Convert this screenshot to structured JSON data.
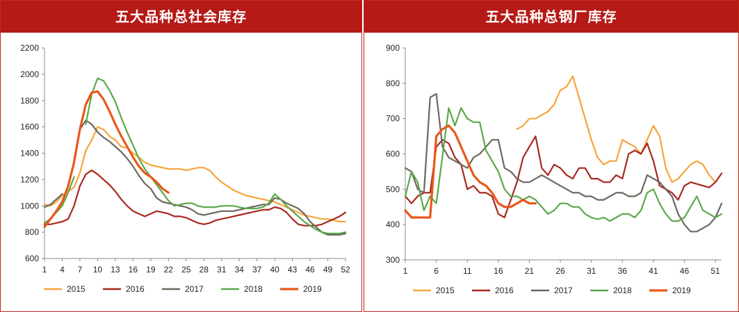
{
  "colors": {
    "title_bg": "#b51a16",
    "title_text": "#ffffff",
    "s2015": "#f7a43a",
    "s2016": "#a8271e",
    "s2017": "#6e665e",
    "s2018": "#5aa84a",
    "s2019": "#e8581a"
  },
  "chart_data": [
    {
      "type": "line",
      "title": "五大品种总社会库存",
      "ylim": [
        600,
        2200
      ],
      "yticks": [
        600,
        800,
        1000,
        1200,
        1400,
        1600,
        1800,
        2000,
        2200
      ],
      "xlim": [
        1,
        52
      ],
      "xticks": [
        1,
        4,
        7,
        10,
        13,
        16,
        19,
        22,
        25,
        28,
        31,
        34,
        37,
        40,
        43,
        46,
        49,
        52
      ],
      "legend_position": "bottom",
      "series": [
        {
          "name": "2015",
          "color": "#f7a43a",
          "x": [
            1,
            2,
            3,
            4,
            5,
            6,
            7,
            8,
            9,
            10,
            11,
            12,
            13,
            14,
            15,
            16,
            17,
            18,
            19,
            20,
            21,
            22,
            23,
            24,
            25,
            26,
            27,
            28,
            29,
            30,
            31,
            32,
            33,
            34,
            35,
            36,
            37,
            38,
            39,
            40,
            41,
            42,
            43,
            44,
            45,
            46,
            47,
            48,
            49,
            50,
            51,
            52
          ],
          "values": [
            1010,
            1000,
            1030,
            1080,
            1110,
            1140,
            1250,
            1420,
            1500,
            1600,
            1580,
            1530,
            1500,
            1450,
            1440,
            1400,
            1370,
            1330,
            1310,
            1300,
            1290,
            1280,
            1280,
            1280,
            1270,
            1280,
            1290,
            1290,
            1270,
            1220,
            1180,
            1150,
            1120,
            1100,
            1080,
            1070,
            1060,
            1050,
            1040,
            1030,
            1010,
            990,
            970,
            950,
            930,
            920,
            910,
            900,
            900,
            890,
            880,
            880
          ]
        },
        {
          "name": "2016",
          "color": "#a8271e",
          "x": [
            1,
            2,
            3,
            4,
            5,
            6,
            7,
            8,
            9,
            10,
            11,
            12,
            13,
            14,
            15,
            16,
            17,
            18,
            19,
            20,
            21,
            22,
            23,
            24,
            25,
            26,
            27,
            28,
            29,
            30,
            31,
            32,
            33,
            34,
            35,
            36,
            37,
            38,
            39,
            40,
            41,
            42,
            43,
            44,
            45,
            46,
            47,
            48,
            49,
            50,
            51,
            52
          ],
          "values": [
            860,
            860,
            870,
            880,
            900,
            1000,
            1150,
            1240,
            1270,
            1240,
            1200,
            1160,
            1110,
            1050,
            1000,
            960,
            940,
            920,
            940,
            960,
            950,
            940,
            920,
            920,
            910,
            890,
            870,
            860,
            870,
            890,
            900,
            910,
            920,
            930,
            940,
            950,
            960,
            970,
            970,
            990,
            980,
            950,
            900,
            860,
            850,
            850,
            850,
            860,
            880,
            900,
            920,
            950
          ]
        },
        {
          "name": "2017",
          "color": "#6e665e",
          "x": [
            1,
            2,
            3,
            4,
            5,
            6,
            7,
            8,
            9,
            10,
            11,
            12,
            13,
            14,
            15,
            16,
            17,
            18,
            19,
            20,
            21,
            22,
            23,
            24,
            25,
            26,
            27,
            28,
            29,
            30,
            31,
            32,
            33,
            34,
            35,
            36,
            37,
            38,
            39,
            40,
            41,
            42,
            43,
            44,
            45,
            46,
            47,
            48,
            49,
            50,
            51,
            52
          ],
          "values": [
            990,
            1010,
            1050,
            1090,
            null,
            1350,
            1580,
            1650,
            1620,
            1560,
            1520,
            1490,
            1450,
            1410,
            1360,
            1300,
            1230,
            1170,
            1130,
            1060,
            1030,
            1020,
            1010,
            1000,
            990,
            970,
            940,
            930,
            940,
            950,
            960,
            960,
            960,
            970,
            980,
            990,
            1000,
            1010,
            1010,
            1060,
            1050,
            1020,
            1000,
            980,
            940,
            880,
            840,
            800,
            780,
            780,
            780,
            790
          ]
        },
        {
          "name": "2018",
          "color": "#5aa84a",
          "x": [
            1,
            2,
            3,
            4,
            5,
            6,
            7,
            8,
            9,
            10,
            11,
            12,
            13,
            14,
            15,
            16,
            17,
            18,
            19,
            20,
            21,
            22,
            23,
            24,
            25,
            26,
            27,
            28,
            29,
            30,
            31,
            32,
            33,
            34,
            35,
            36,
            37,
            38,
            39,
            40,
            41,
            42,
            43,
            44,
            45,
            46,
            47,
            48,
            49,
            50,
            51,
            52
          ],
          "values": [
            870,
            900,
            950,
            1000,
            1100,
            1220,
            null,
            1620,
            1850,
            1970,
            1950,
            1880,
            1790,
            1670,
            1560,
            1460,
            1360,
            1280,
            1220,
            1160,
            1100,
            1040,
            1000,
            1010,
            1020,
            1020,
            1000,
            990,
            990,
            990,
            1000,
            1000,
            1000,
            990,
            980,
            980,
            980,
            990,
            1020,
            1090,
            1050,
            1000,
            960,
            920,
            880,
            850,
            820,
            800,
            790,
            790,
            790,
            800
          ]
        },
        {
          "name": "2019",
          "color": "#e8581a",
          "x": [
            1,
            2,
            3,
            4,
            5,
            6,
            7,
            8,
            9,
            10,
            11,
            12,
            13,
            14,
            15,
            16,
            17,
            18,
            19,
            20,
            21,
            22
          ],
          "values": [
            840,
            900,
            960,
            1030,
            1150,
            1330,
            1580,
            1770,
            1860,
            1870,
            1810,
            1720,
            1620,
            1530,
            1450,
            1370,
            1300,
            1250,
            1220,
            1180,
            1130,
            1100
          ]
        }
      ]
    },
    {
      "type": "line",
      "title": "五大品种总钢厂库存",
      "ylim": [
        300,
        900
      ],
      "yticks": [
        300,
        400,
        500,
        600,
        700,
        800,
        900
      ],
      "xlim": [
        1,
        52
      ],
      "xticks": [
        1,
        6,
        11,
        16,
        21,
        26,
        31,
        36,
        41,
        46,
        51
      ],
      "legend_position": "bottom",
      "series": [
        {
          "name": "2015",
          "color": "#f7a43a",
          "x": [
            19,
            20,
            21,
            22,
            23,
            24,
            25,
            26,
            27,
            28,
            29,
            30,
            31,
            32,
            33,
            34,
            35,
            36,
            37,
            38,
            39,
            40,
            41,
            42,
            43,
            44,
            45,
            46,
            47,
            48,
            49,
            50,
            51
          ],
          "values": [
            670,
            680,
            700,
            700,
            710,
            720,
            740,
            780,
            790,
            820,
            760,
            700,
            640,
            590,
            570,
            580,
            580,
            640,
            630,
            620,
            600,
            640,
            680,
            650,
            560,
            520,
            530,
            550,
            570,
            580,
            570,
            540,
            520
          ]
        },
        {
          "name": "2016",
          "color": "#a8271e",
          "x": [
            1,
            2,
            3,
            4,
            5,
            6,
            7,
            8,
            9,
            10,
            11,
            12,
            13,
            14,
            15,
            16,
            17,
            18,
            19,
            20,
            21,
            22,
            23,
            24,
            25,
            26,
            27,
            28,
            29,
            30,
            31,
            32,
            33,
            34,
            35,
            36,
            37,
            38,
            39,
            40,
            41,
            42,
            43,
            44,
            45,
            46,
            47,
            48,
            49,
            50,
            51,
            52
          ],
          "values": [
            480,
            460,
            480,
            490,
            490,
            620,
            640,
            630,
            590,
            570,
            500,
            510,
            490,
            490,
            480,
            430,
            420,
            470,
            520,
            590,
            620,
            650,
            560,
            540,
            570,
            560,
            540,
            530,
            560,
            560,
            530,
            530,
            520,
            520,
            540,
            530,
            600,
            610,
            600,
            630,
            580,
            510,
            500,
            490,
            470,
            510,
            520,
            515,
            510,
            505,
            520,
            545
          ]
        },
        {
          "name": "2017",
          "color": "#6e665e",
          "x": [
            1,
            2,
            3,
            4,
            5,
            6,
            7,
            8,
            9,
            10,
            11,
            12,
            13,
            14,
            15,
            16,
            17,
            18,
            19,
            20,
            21,
            22,
            23,
            24,
            25,
            26,
            27,
            28,
            29,
            30,
            31,
            32,
            33,
            34,
            35,
            36,
            37,
            38,
            39,
            40,
            41,
            42,
            43,
            44,
            45,
            46,
            47,
            48,
            49,
            50,
            51,
            52
          ],
          "values": [
            560,
            550,
            500,
            490,
            760,
            770,
            620,
            590,
            580,
            570,
            560,
            590,
            600,
            620,
            640,
            640,
            560,
            550,
            530,
            520,
            520,
            530,
            540,
            530,
            520,
            510,
            500,
            490,
            490,
            480,
            480,
            470,
            470,
            480,
            490,
            490,
            480,
            480,
            490,
            540,
            530,
            520,
            500,
            480,
            430,
            400,
            380,
            380,
            390,
            400,
            420,
            460
          ]
        },
        {
          "name": "2018",
          "color": "#5aa84a",
          "x": [
            1,
            2,
            3,
            4,
            5,
            6,
            8,
            9,
            10,
            11,
            12,
            13,
            14,
            15,
            16,
            17,
            18,
            19,
            20,
            21,
            22,
            23,
            24,
            25,
            26,
            27,
            28,
            29,
            30,
            31,
            32,
            33,
            34,
            35,
            36,
            37,
            38,
            39,
            40,
            41,
            42,
            43,
            44,
            45,
            46,
            47,
            48,
            49,
            50,
            51,
            52
          ],
          "values": [
            480,
            550,
            520,
            440,
            480,
            460,
            730,
            680,
            730,
            700,
            690,
            690,
            610,
            580,
            550,
            500,
            480,
            480,
            470,
            480,
            470,
            450,
            430,
            440,
            460,
            460,
            450,
            450,
            430,
            420,
            415,
            420,
            410,
            420,
            430,
            430,
            420,
            440,
            490,
            500,
            460,
            430,
            410,
            410,
            420,
            450,
            480,
            440,
            430,
            420,
            430
          ]
        },
        {
          "name": "2019",
          "color": "#e8581a",
          "x": [
            1,
            2,
            3,
            4,
            5,
            6,
            7,
            8,
            9,
            10,
            11,
            12,
            13,
            14,
            15,
            16,
            17,
            18,
            19,
            20,
            21,
            22
          ],
          "values": [
            440,
            420,
            420,
            420,
            420,
            650,
            670,
            680,
            660,
            620,
            580,
            540,
            520,
            510,
            490,
            460,
            450,
            450,
            460,
            470,
            460,
            460
          ]
        }
      ]
    }
  ]
}
